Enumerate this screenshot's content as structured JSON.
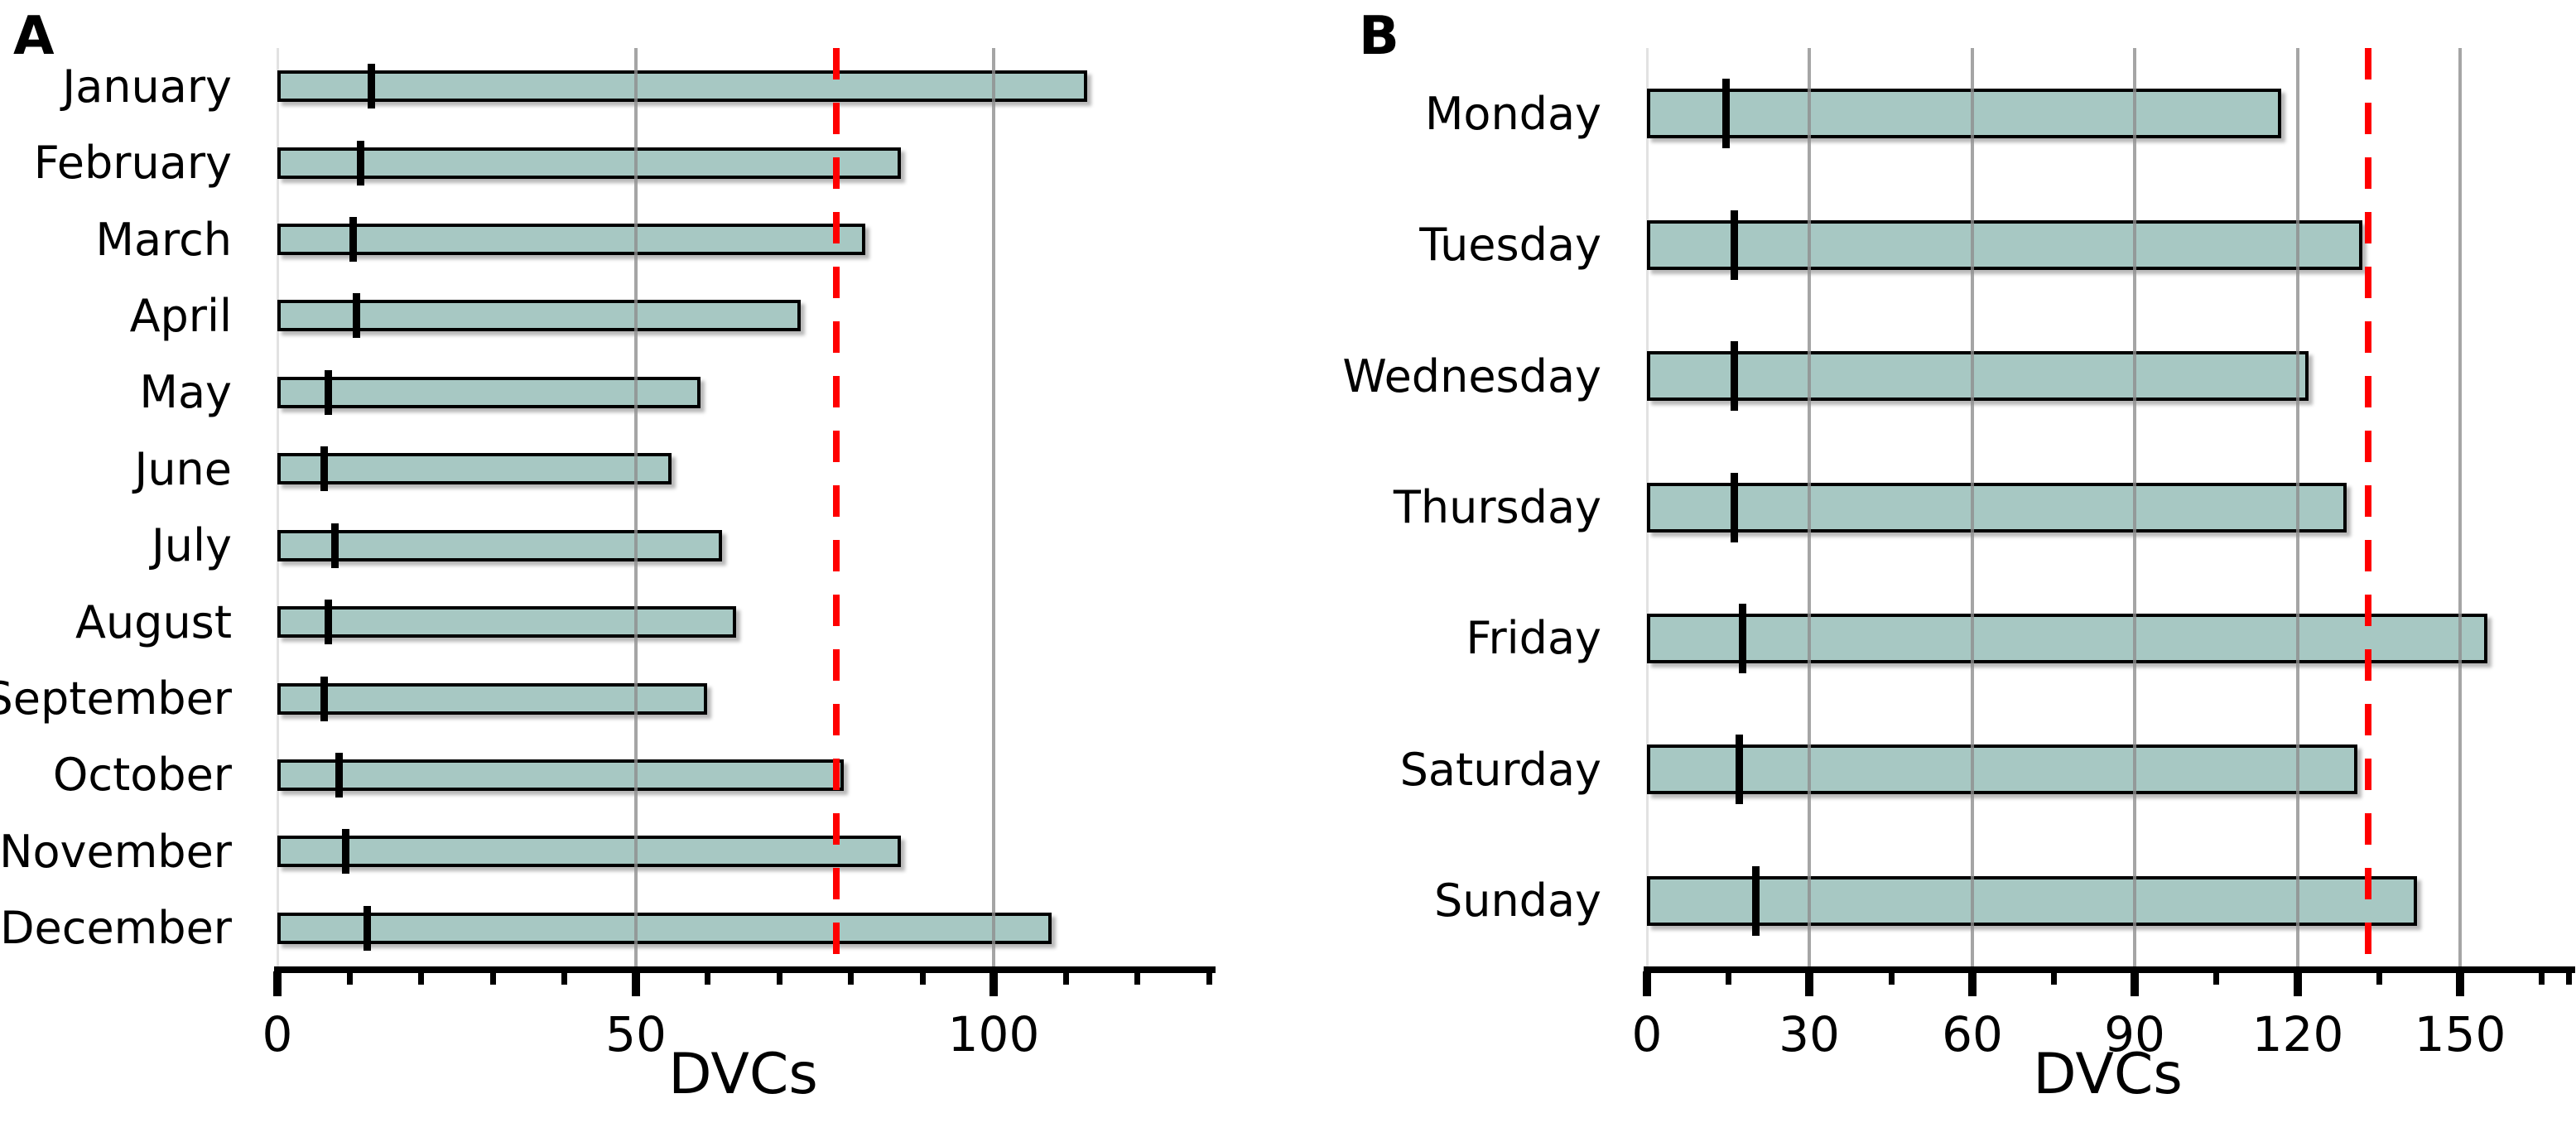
{
  "chart_data": [
    {
      "type": "bar",
      "orientation": "horizontal",
      "panel_label": "A",
      "xlabel": "DVCs",
      "categories": [
        "January",
        "February",
        "March",
        "April",
        "May",
        "June",
        "July",
        "August",
        "September",
        "October",
        "November",
        "December"
      ],
      "values": [
        113,
        87,
        82,
        73,
        59,
        55,
        62,
        64,
        60,
        79,
        87,
        108
      ],
      "bar_tick_marker_values": [
        13,
        11.5,
        10.5,
        11,
        7,
        6.5,
        8,
        7,
        6.5,
        8.5,
        9.5,
        12.5
      ],
      "reference_line_value": 78,
      "xlim": [
        0,
        130
      ],
      "x_major_ticks": [
        0,
        50,
        100
      ],
      "x_minor_tick_step": 10,
      "gridline_values": [
        50,
        100
      ],
      "grid": "vertical-on",
      "legend": "none"
    },
    {
      "type": "bar",
      "orientation": "horizontal",
      "panel_label": "B",
      "xlabel": "DVCs",
      "categories": [
        "Monday",
        "Tuesday",
        "Wednesday",
        "Thursday",
        "Friday",
        "Saturday",
        "Sunday"
      ],
      "values": [
        117,
        132,
        122,
        129,
        155,
        131,
        142
      ],
      "bar_tick_marker_values": [
        14.5,
        16,
        16,
        16,
        17.5,
        17,
        20
      ],
      "reference_line_value": 133,
      "xlim": [
        0,
        170
      ],
      "x_major_ticks": [
        0,
        30,
        60,
        90,
        120,
        150
      ],
      "x_minor_tick_step": 15,
      "gridline_values": [
        30,
        60,
        90,
        120,
        150
      ],
      "grid": "vertical-on",
      "legend": "none"
    }
  ],
  "styles": {
    "bar_fill": "#a7c8c3",
    "bar_border": "#000000",
    "marker_color": "#000000",
    "reference_line_color": "#ff0000",
    "gridline_color": "#8e8e8e",
    "zero_line_color": "#e2e2e2",
    "axis_color": "#000000",
    "text_color": "#000000"
  }
}
